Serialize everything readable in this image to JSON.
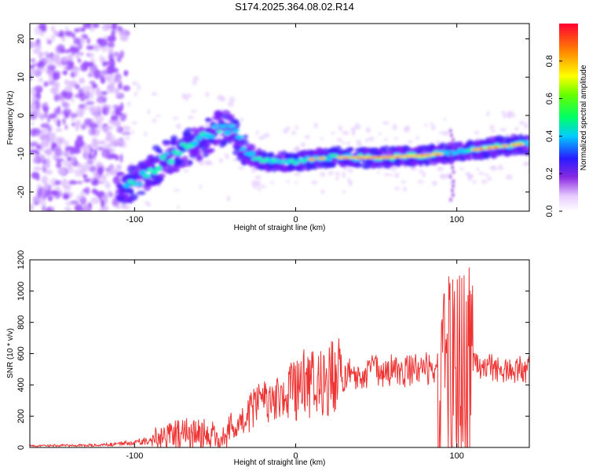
{
  "title": "S174.2025.364.08.02.R14",
  "chart_data": [
    {
      "type": "heatmap",
      "xlabel": "Height of straight line (km)",
      "ylabel": "Frequency (Hz)",
      "xlim": [
        -165,
        145
      ],
      "ylim": [
        -25,
        24
      ],
      "xticks": [
        -100,
        0,
        100
      ],
      "yticks": [
        20,
        10,
        0,
        -10,
        -20
      ],
      "colorbar": {
        "label": "Normalized spectral amplitude",
        "range": [
          0,
          1
        ],
        "ticks": [
          "0.0",
          "0.2",
          "0.4",
          "0.6",
          "0.8"
        ]
      },
      "ridge": [
        {
          "x": -105,
          "y": -19
        },
        {
          "x": -90,
          "y": -14
        },
        {
          "x": -75,
          "y": -10
        },
        {
          "x": -60,
          "y": -7
        },
        {
          "x": -50,
          "y": -4
        },
        {
          "x": -40,
          "y": -3
        },
        {
          "x": -30,
          "y": -10
        },
        {
          "x": -20,
          "y": -12
        },
        {
          "x": 0,
          "y": -12
        },
        {
          "x": 20,
          "y": -11
        },
        {
          "x": 50,
          "y": -11
        },
        {
          "x": 80,
          "y": -10.5
        },
        {
          "x": 100,
          "y": -9.5
        },
        {
          "x": 120,
          "y": -8.5
        },
        {
          "x": 140,
          "y": -7.5
        }
      ]
    },
    {
      "type": "line",
      "xlabel": "Height of straight line (km)",
      "ylabel": "SNR (10 * v/v)",
      "xlim": [
        -165,
        145
      ],
      "ylim": [
        0,
        1200
      ],
      "xticks": [
        -100,
        0,
        100
      ],
      "yticks": [
        0,
        200,
        400,
        600,
        800,
        1000,
        1200
      ],
      "series": [
        {
          "name": "SNR",
          "color": "#ee3333",
          "envelope": [
            {
              "x": -165,
              "y": 10
            },
            {
              "x": -120,
              "y": 15
            },
            {
              "x": -100,
              "y": 30
            },
            {
              "x": -80,
              "y": 70
            },
            {
              "x": -60,
              "y": 90
            },
            {
              "x": -45,
              "y": 60
            },
            {
              "x": -35,
              "y": 140
            },
            {
              "x": -25,
              "y": 260
            },
            {
              "x": -10,
              "y": 330
            },
            {
              "x": 0,
              "y": 370
            },
            {
              "x": 20,
              "y": 440
            },
            {
              "x": 40,
              "y": 480
            },
            {
              "x": 60,
              "y": 500
            },
            {
              "x": 70,
              "y": 490
            },
            {
              "x": 80,
              "y": 510
            },
            {
              "x": 90,
              "y": 510
            },
            {
              "x": 95,
              "y": 480
            },
            {
              "x": 100,
              "y": 450
            },
            {
              "x": 105,
              "y": 460
            },
            {
              "x": 110,
              "y": 510
            },
            {
              "x": 145,
              "y": 500
            }
          ]
        }
      ]
    }
  ]
}
